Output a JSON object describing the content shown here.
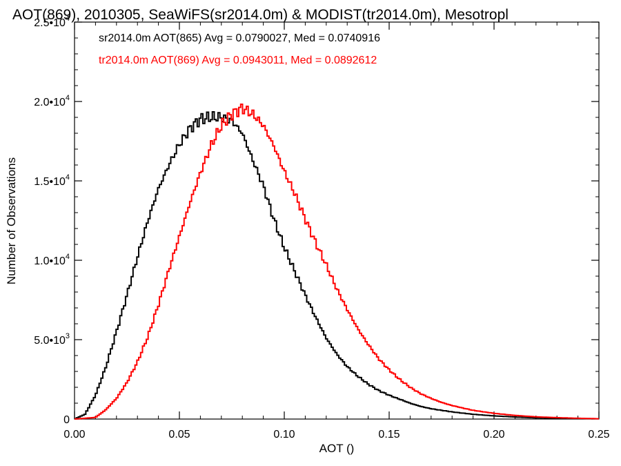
{
  "chart_data": {
    "type": "line",
    "title": "AOT(869), 2010305, SeaWiFS(sr2014.0m) & MODIST(tr2014.0m), Mesotropl",
    "xlabel": "AOT ()",
    "ylabel": "Number of Observations",
    "xlim": [
      0.0,
      0.25
    ],
    "ylim": [
      0,
      25000
    ],
    "x_ticks": [
      {
        "value": 0.0,
        "label": "0.00"
      },
      {
        "value": 0.05,
        "label": "0.05"
      },
      {
        "value": 0.1,
        "label": "0.10"
      },
      {
        "value": 0.15,
        "label": "0.15"
      },
      {
        "value": 0.2,
        "label": "0.20"
      },
      {
        "value": 0.25,
        "label": "0.25"
      }
    ],
    "y_ticks": [
      {
        "value": 0,
        "mantissa": "0",
        "exp": ""
      },
      {
        "value": 5000,
        "mantissa": "5.0•10",
        "exp": "3"
      },
      {
        "value": 10000,
        "mantissa": "1.0•10",
        "exp": "4"
      },
      {
        "value": 15000,
        "mantissa": "1.5•10",
        "exp": "4"
      },
      {
        "value": 20000,
        "mantissa": "2.0•10",
        "exp": "4"
      },
      {
        "value": 25000,
        "mantissa": "2.5•10",
        "exp": "4"
      }
    ],
    "grid": false,
    "series": [
      {
        "name": "sr2014.0m AOT(865) Avg = 0.0790027, Med = 0.0740916",
        "color": "#000000",
        "x": [
          0.0,
          0.005,
          0.01,
          0.015,
          0.02,
          0.025,
          0.03,
          0.035,
          0.04,
          0.045,
          0.05,
          0.055,
          0.06,
          0.065,
          0.07,
          0.075,
          0.08,
          0.085,
          0.09,
          0.095,
          0.1,
          0.105,
          0.11,
          0.115,
          0.12,
          0.125,
          0.13,
          0.135,
          0.14,
          0.145,
          0.15,
          0.155,
          0.16,
          0.165,
          0.17,
          0.175,
          0.18,
          0.19,
          0.2,
          0.21,
          0.22,
          0.23,
          0.24,
          0.25
        ],
        "y": [
          0,
          300,
          1500,
          3300,
          5500,
          7800,
          10200,
          12500,
          14500,
          16000,
          17300,
          18300,
          18900,
          19000,
          19000,
          18800,
          18000,
          16300,
          14700,
          12600,
          10800,
          9300,
          7800,
          6400,
          5100,
          4100,
          3300,
          2700,
          2200,
          1800,
          1500,
          1250,
          1000,
          800,
          650,
          550,
          450,
          300,
          200,
          130,
          80,
          50,
          30,
          20
        ]
      },
      {
        "name": "tr2014.0m AOT(869) Avg = 0.0943011, Med = 0.0892612",
        "color": "#ff0000",
        "x": [
          0.0,
          0.01,
          0.015,
          0.02,
          0.025,
          0.03,
          0.035,
          0.04,
          0.045,
          0.05,
          0.055,
          0.06,
          0.065,
          0.07,
          0.075,
          0.08,
          0.085,
          0.09,
          0.095,
          0.1,
          0.105,
          0.11,
          0.115,
          0.12,
          0.125,
          0.13,
          0.135,
          0.14,
          0.145,
          0.15,
          0.155,
          0.16,
          0.165,
          0.17,
          0.175,
          0.18,
          0.19,
          0.2,
          0.21,
          0.22,
          0.23,
          0.24,
          0.25
        ],
        "y": [
          0,
          100,
          600,
          1300,
          2300,
          3600,
          5200,
          7200,
          9400,
          11500,
          13600,
          15500,
          17200,
          18500,
          19200,
          19600,
          19200,
          18500,
          17200,
          15600,
          14200,
          12600,
          11100,
          9700,
          8200,
          6900,
          5700,
          4700,
          3800,
          3100,
          2500,
          2000,
          1600,
          1300,
          1050,
          850,
          550,
          360,
          230,
          140,
          90,
          50,
          20
        ]
      }
    ]
  }
}
